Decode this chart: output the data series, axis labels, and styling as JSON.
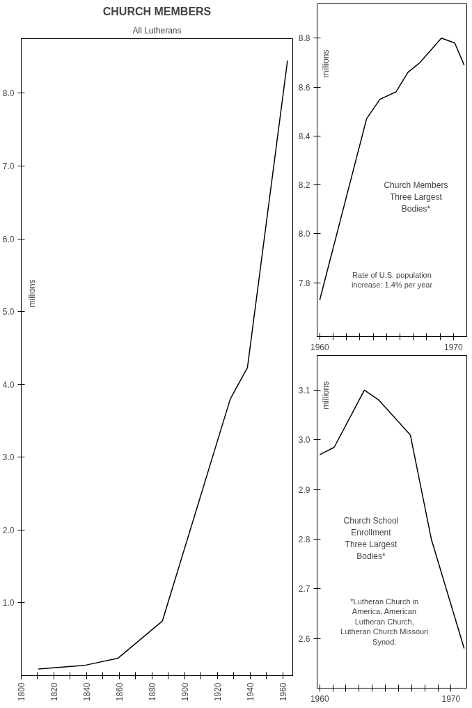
{
  "chart_data": [
    {
      "type": "line",
      "title": "CHURCH MEMBERS",
      "subtitle": "All Lutherans",
      "ylabel": "millions",
      "color": "#000000",
      "grid": false,
      "line_style": "solid",
      "x": [
        1810.5,
        1838.5,
        1859.2,
        1886.3,
        1927.8,
        1938.3,
        1962.8
      ],
      "values": [
        0.09,
        0.14,
        0.24,
        0.75,
        3.8,
        4.23,
        8.45
      ],
      "xlim": [
        1800,
        1966
      ],
      "ylim": [
        0,
        8.75
      ],
      "xticks": [
        1800,
        {
          "value": 1810,
          "label": null
        },
        1820,
        {
          "value": 1830,
          "label": null
        },
        1840,
        {
          "value": 1850,
          "label": null
        },
        1860,
        {
          "value": 1870,
          "label": null
        },
        1880,
        {
          "value": 1890,
          "label": null
        },
        1900,
        {
          "value": 1910,
          "label": null
        },
        1920,
        {
          "value": 1930,
          "label": null
        },
        1940,
        {
          "value": 1950,
          "label": null
        },
        1960
      ],
      "yticks": [
        {
          "value": 1,
          "label": "1.0"
        },
        {
          "value": 2,
          "label": "2.0"
        },
        {
          "value": 3,
          "label": "3.0"
        },
        {
          "value": 4,
          "label": "4.0"
        },
        {
          "value": 5,
          "label": "5.0"
        },
        {
          "value": 6,
          "label": "6.0"
        },
        {
          "value": 7,
          "label": "7.0"
        },
        {
          "value": 8,
          "label": "8.0"
        }
      ]
    },
    {
      "type": "line",
      "ylabel": "millions",
      "color": "#000000",
      "grid": false,
      "line_style": "solid",
      "x": [
        1960.0,
        1963.5,
        1964.5,
        1965.7,
        1966.6,
        1967.5,
        1969.1,
        1970.1,
        1970.8
      ],
      "values": [
        7.73,
        8.47,
        8.55,
        8.58,
        8.66,
        8.7,
        8.8,
        8.78,
        8.69
      ],
      "xlim": [
        1959.8,
        1971
      ],
      "ylim": [
        7.58,
        8.94
      ],
      "xticks": [
        1960,
        {
          "value": 1961,
          "label": null
        },
        {
          "value": 1962,
          "label": null
        },
        {
          "value": 1963,
          "label": null
        },
        {
          "value": 1964,
          "label": null
        },
        {
          "value": 1965,
          "label": null
        },
        {
          "value": 1966,
          "label": null
        },
        {
          "value": 1967,
          "label": null
        },
        {
          "value": 1968,
          "label": null
        },
        {
          "value": 1969,
          "label": null
        },
        1970
      ],
      "yticks": [
        {
          "value": 7.8,
          "label": "7.8"
        },
        {
          "value": 8.0,
          "label": "8.0"
        },
        {
          "value": 8.2,
          "label": "8.2"
        },
        {
          "value": 8.4,
          "label": "8.4"
        },
        {
          "value": 8.6,
          "label": "8.6"
        },
        {
          "value": 8.8,
          "label": "8.8"
        }
      ],
      "annotations": [
        "Church Members Three Largest Bodies*",
        "Rate of U.S. population increase: 1.4% per year"
      ]
    },
    {
      "type": "line",
      "ylabel": "millions",
      "color": "#000000",
      "grid": false,
      "line_style": "solid",
      "x": [
        1960.0,
        1961.1,
        1963.4,
        1964.5,
        1966.9,
        1968.5,
        1971.0
      ],
      "values": [
        2.97,
        2.985,
        3.1,
        3.08,
        3.01,
        2.8,
        2.58
      ],
      "xlim": [
        1959.8,
        1971.2
      ],
      "ylim": [
        2.5,
        3.17
      ],
      "xticks": [
        1960,
        {
          "value": 1961,
          "label": null
        },
        {
          "value": 1962,
          "label": null
        },
        {
          "value": 1963,
          "label": null
        },
        {
          "value": 1964,
          "label": null
        },
        {
          "value": 1965,
          "label": null
        },
        {
          "value": 1966,
          "label": null
        },
        {
          "value": 1967,
          "label": null
        },
        {
          "value": 1968,
          "label": null
        },
        {
          "value": 1969,
          "label": null
        },
        1970
      ],
      "yticks": [
        2.6,
        2.7,
        2.8,
        2.9,
        {
          "value": 3.0,
          "label": "3.0"
        },
        3.1
      ],
      "annotations": [
        "Church School Enrollment Three Largest Bodies*",
        "*Lutheran Church in America, American Lutheran Church, Lutheran Church Missouri Synod."
      ]
    }
  ]
}
